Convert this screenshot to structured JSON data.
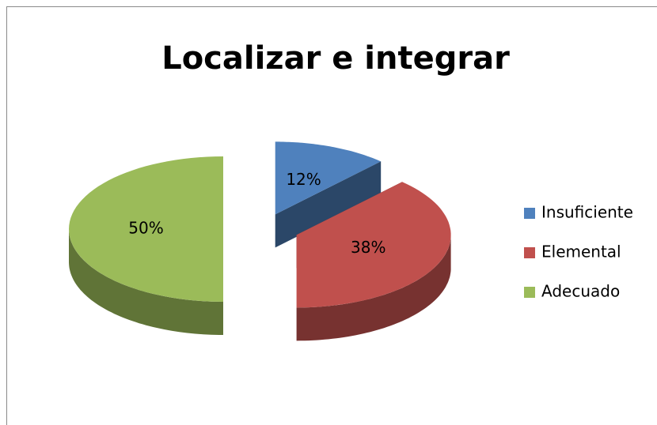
{
  "chart_data": {
    "type": "pie",
    "title": "Localizar e integrar",
    "categories": [
      "Insuficiente",
      "Elemental",
      "Adecuado"
    ],
    "values": [
      12,
      38,
      50
    ],
    "value_labels": [
      "12%",
      "38%",
      "50%"
    ],
    "colors": [
      "#4f81bd",
      "#c0504d",
      "#9bbb59"
    ],
    "legend": "right"
  }
}
